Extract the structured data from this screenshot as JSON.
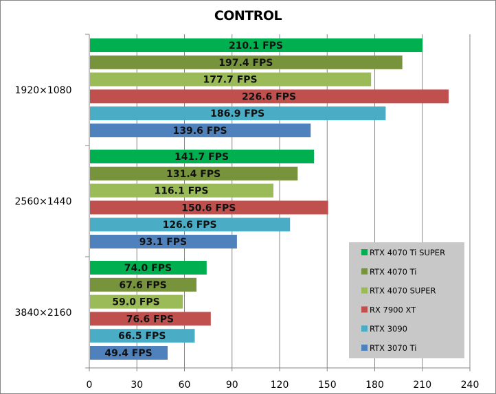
{
  "chart_data": {
    "type": "bar",
    "orientation": "horizontal",
    "title": "CONTROL",
    "xlabel": "",
    "ylabel": "",
    "xlim": [
      0,
      240
    ],
    "xticks": [
      0,
      30,
      60,
      90,
      120,
      150,
      180,
      210,
      240
    ],
    "grid": true,
    "legend_position": "bottom-right",
    "value_suffix": " FPS",
    "categories": [
      "1920×1080",
      "2560×1440",
      "3840×2160"
    ],
    "series": [
      {
        "name": "RTX 4070 Ti SUPER",
        "color": "#00b050",
        "values": [
          210.1,
          141.7,
          74.0
        ]
      },
      {
        "name": "RTX 4070 Ti",
        "color": "#77933c",
        "values": [
          197.4,
          131.4,
          67.6
        ]
      },
      {
        "name": "RTX 4070 SUPER",
        "color": "#9bbb59",
        "values": [
          177.7,
          116.1,
          59.0
        ]
      },
      {
        "name": "RX 7900 XT",
        "color": "#c0504d",
        "values": [
          226.6,
          150.6,
          76.6
        ]
      },
      {
        "name": "RTX 3090",
        "color": "#4bacc6",
        "values": [
          186.9,
          126.6,
          66.5
        ]
      },
      {
        "name": "RTX 3070 Ti",
        "color": "#4f81bd",
        "values": [
          139.6,
          93.1,
          49.4
        ]
      }
    ],
    "data_labels": [
      [
        "210.1 FPS",
        "141.7 FPS",
        "74.0 FPS"
      ],
      [
        "197.4 FPS",
        "131.4 FPS",
        "67.6 FPS"
      ],
      [
        "177.7 FPS",
        "116.1 FPS",
        "59.0 FPS"
      ],
      [
        "226.6 FPS",
        "150.6 FPS",
        "76.6 FPS"
      ],
      [
        "186.9 FPS",
        "126.6 FPS",
        "66.5 FPS"
      ],
      [
        "139.6 FPS",
        "93.1 FPS",
        "49.4 FPS"
      ]
    ]
  },
  "colors": {
    "grid": "#868686",
    "legend_bg": "#c8c8c8"
  }
}
